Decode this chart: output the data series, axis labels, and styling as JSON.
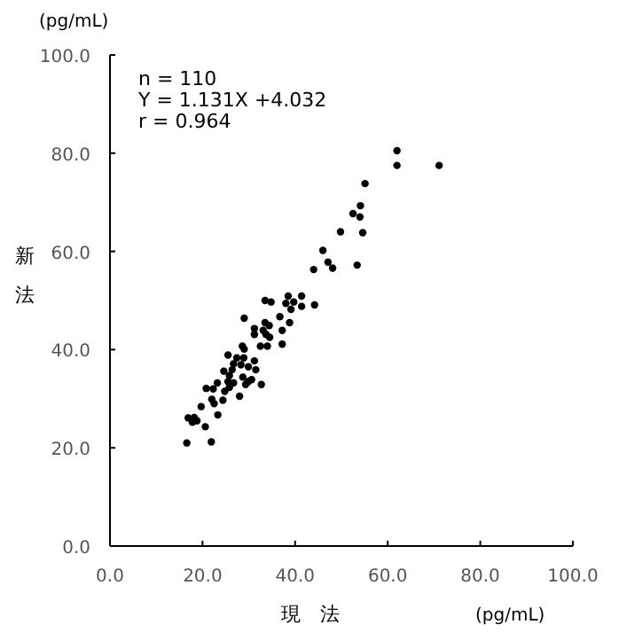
{
  "chart_data": {
    "type": "scatter",
    "xlabel": "現　法",
    "ylabel": "新法",
    "annotations": [
      "(pg/mL)",
      "n = 110",
      "Y = 1.131X +4.032",
      "r = 0.964",
      "(pg/mL)"
    ],
    "xlim": [
      0,
      100
    ],
    "ylim": [
      0,
      100
    ],
    "xticks": [
      {
        "value": 0,
        "label": "0.0"
      },
      {
        "value": 20,
        "label": "20.0"
      },
      {
        "value": 40,
        "label": "40.0"
      },
      {
        "value": 60,
        "label": "60.0"
      },
      {
        "value": 80,
        "label": "80.0"
      },
      {
        "value": 100,
        "label": "100.0"
      }
    ],
    "yticks": [
      {
        "value": 0,
        "label": "0.0"
      },
      {
        "value": 20,
        "label": "20.0"
      },
      {
        "value": 40,
        "label": "40.0"
      },
      {
        "value": 60,
        "label": "60.0"
      },
      {
        "value": 80,
        "label": "80.0"
      },
      {
        "value": 100,
        "label": "100.0"
      }
    ],
    "marker": "circle",
    "grid": false,
    "series": [
      {
        "color": "#000000",
        "x": [
          62.0,
          62.0,
          71.1,
          55.1,
          54.1,
          52.5,
          54.0,
          49.8,
          54.6,
          46.0,
          47.1,
          48.1,
          53.4,
          44.0,
          33.5,
          34.8,
          38.5,
          41.4,
          39.7,
          38.0,
          41.4,
          44.2,
          39.1,
          29.0,
          36.7,
          38.8,
          33.5,
          34.4,
          31.2,
          33.1,
          37.2,
          31.2,
          33.7,
          34.5,
          37.2,
          32.5,
          34.0,
          28.6,
          29.0,
          25.5,
          27.4,
          28.9,
          31.2,
          26.7,
          28.3,
          29.9,
          24.6,
          31.5,
          25.8,
          28.7,
          29.9,
          25.5,
          23.2,
          26.7,
          20.8,
          22.3,
          25.8,
          24.8,
          29.3,
          28.0,
          22.0,
          24.4,
          22.5,
          19.7,
          23.3,
          16.9,
          18.2,
          18.8,
          17.8,
          20.6,
          16.6,
          21.9,
          26.4,
          30.6,
          32.7
        ],
        "values": [
          80.5,
          77.5,
          77.5,
          73.8,
          69.3,
          67.7,
          67.0,
          64.0,
          63.8,
          60.2,
          57.8,
          56.6,
          57.2,
          56.3,
          50.0,
          49.7,
          50.9,
          50.9,
          49.7,
          49.4,
          48.8,
          49.1,
          48.2,
          46.4,
          46.7,
          45.5,
          45.5,
          44.9,
          44.3,
          43.9,
          43.9,
          43.1,
          43.1,
          42.5,
          41.1,
          40.7,
          40.7,
          40.7,
          40.1,
          38.9,
          38.3,
          38.3,
          37.7,
          37.1,
          36.9,
          36.5,
          35.6,
          35.9,
          34.7,
          34.4,
          33.5,
          33.5,
          33.2,
          33.2,
          32.1,
          32.0,
          32.3,
          31.5,
          32.9,
          30.5,
          29.9,
          29.7,
          29.0,
          28.4,
          26.7,
          26.1,
          26.2,
          25.5,
          25.2,
          24.3,
          21.0,
          21.2,
          35.9,
          33.9,
          32.9
        ]
      }
    ]
  }
}
